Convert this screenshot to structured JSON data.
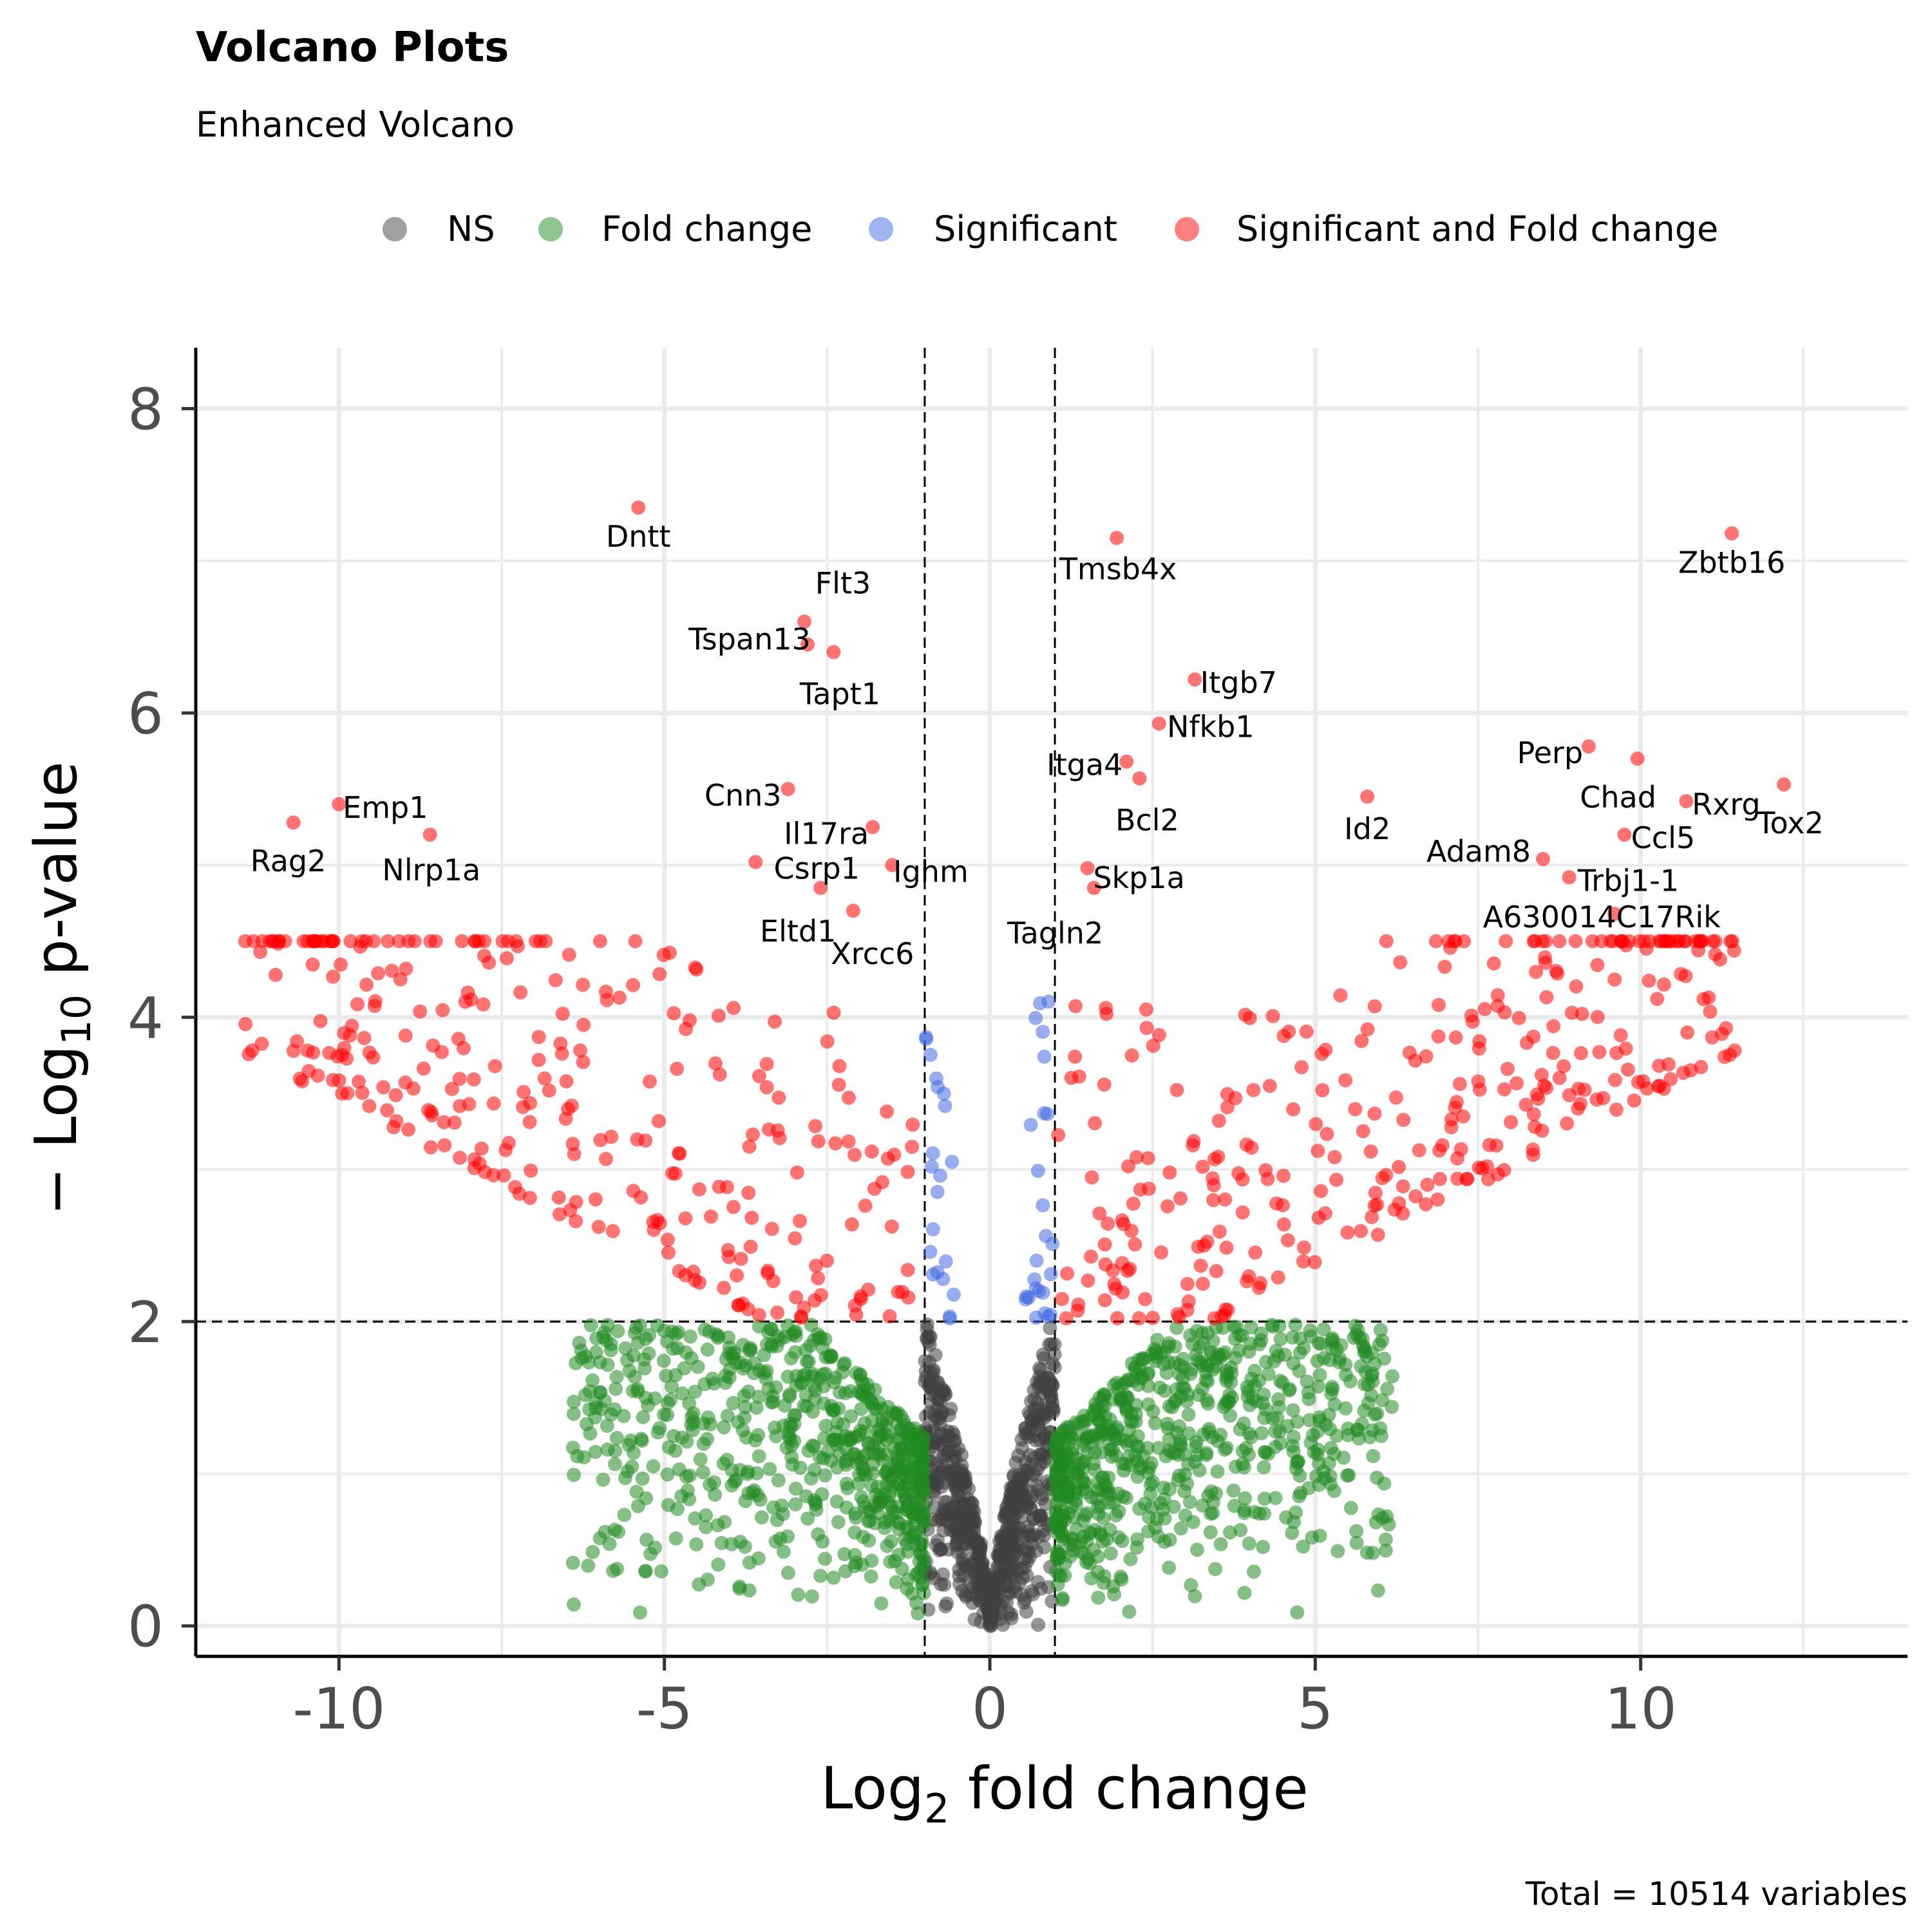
{
  "chart_data": {
    "type": "scatter",
    "title": "Volcano Plots",
    "subtitle": "Enhanced Volcano",
    "xlabel_base": "Log",
    "xlabel_sub": "2",
    "xlabel_rest": " fold change",
    "ylabel_prefix": "− Log",
    "ylabel_sub": "10",
    "ylabel_rest": " p-value",
    "caption": "Total = 10514 variables",
    "xlim": [
      -12.2,
      14.1
    ],
    "ylim": [
      -0.2,
      8.4
    ],
    "x_ticks": [
      -10,
      -5,
      0,
      5,
      10
    ],
    "x_tick_labels": [
      "-10",
      "-5",
      "0",
      "5",
      "10"
    ],
    "y_ticks": [
      0,
      2,
      4,
      6,
      8
    ],
    "y_tick_labels": [
      "0",
      "2",
      "4",
      "6",
      "8"
    ],
    "grid": true,
    "legend_position": "top",
    "fc_cutoff": 1,
    "p_cutoff": 2,
    "legend": [
      {
        "label": "NS",
        "color": "#404040"
      },
      {
        "label": "Fold change",
        "color": "#228B22"
      },
      {
        "label": "Significant",
        "color": "#4169E1"
      },
      {
        "label": "Significant and Fold change",
        "color": "#FF0000"
      }
    ],
    "labeled_points": [
      {
        "label": "Dntt",
        "x": -5.4,
        "y": 7.35
      },
      {
        "label": "Flt3",
        "x": -2.85,
        "y": 6.6
      },
      {
        "label": "Tspan13",
        "x": -2.8,
        "y": 6.45
      },
      {
        "label": "Tapt1",
        "x": -2.4,
        "y": 6.4
      },
      {
        "label": "Cnn3",
        "x": -3.1,
        "y": 5.5
      },
      {
        "label": "Il17ra",
        "x": -1.8,
        "y": 5.25
      },
      {
        "label": "Csrp1",
        "x": -3.6,
        "y": 5.02
      },
      {
        "label": "Eltd1",
        "x": -2.6,
        "y": 4.85
      },
      {
        "label": "Ighm",
        "x": -1.5,
        "y": 5.0
      },
      {
        "label": "Xrcc6",
        "x": -2.1,
        "y": 4.7
      },
      {
        "label": "Emp1",
        "x": -10.0,
        "y": 5.4
      },
      {
        "label": "Rag2",
        "x": -10.7,
        "y": 5.28
      },
      {
        "label": "Nlrp1a",
        "x": -8.6,
        "y": 5.2
      },
      {
        "label": "Tmsb4x",
        "x": 1.95,
        "y": 7.15
      },
      {
        "label": "Itgb7",
        "x": 3.15,
        "y": 6.22
      },
      {
        "label": "Nfkb1",
        "x": 2.6,
        "y": 5.93
      },
      {
        "label": "Itga4",
        "x": 2.1,
        "y": 5.68
      },
      {
        "label": "Bcl2",
        "x": 2.3,
        "y": 5.57
      },
      {
        "label": "Skp1a",
        "x": 1.5,
        "y": 4.98
      },
      {
        "label": "Tagln2",
        "x": 1.6,
        "y": 4.85
      },
      {
        "label": "Id2",
        "x": 5.8,
        "y": 5.45
      },
      {
        "label": "Zbtb16",
        "x": 11.4,
        "y": 7.18
      },
      {
        "label": "Perp",
        "x": 9.2,
        "y": 5.78
      },
      {
        "label": "Chad",
        "x": 9.95,
        "y": 5.7
      },
      {
        "label": "Rxrg",
        "x": 10.7,
        "y": 5.42
      },
      {
        "label": "Tox2",
        "x": 12.2,
        "y": 5.53
      },
      {
        "label": "Ccl5",
        "x": 9.75,
        "y": 5.2
      },
      {
        "label": "Adam8",
        "x": 8.5,
        "y": 5.04
      },
      {
        "label": "Trbj1-1",
        "x": 8.9,
        "y": 4.92
      },
      {
        "label": "A630014C17Rik",
        "x": 9.6,
        "y": 4.68
      }
    ]
  }
}
